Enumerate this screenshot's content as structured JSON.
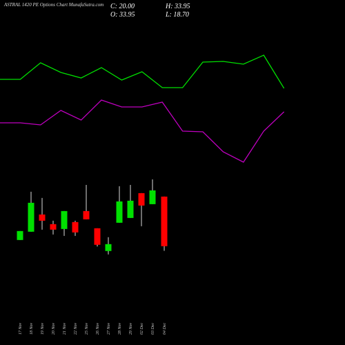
{
  "chart_data": [
    {
      "type": "line",
      "title": "ASTRAL 1420 PE Options Chart MunafaSutra.com",
      "x": [
        0,
        1,
        2,
        3,
        4,
        5,
        6,
        7,
        8,
        9,
        10,
        11,
        12,
        13,
        14
      ],
      "ylim": [
        0,
        100
      ],
      "series": [
        {
          "color": "#00e000",
          "values": [
            77,
            77,
            81.8,
            79,
            77.4,
            80.4,
            76.8,
            79.2,
            74.6,
            74.6,
            82,
            82.2,
            81.4,
            84,
            74.4
          ]
        },
        {
          "color": "#c000c0",
          "values": [
            64.4,
            64.4,
            63.8,
            68,
            65.2,
            71,
            69,
            69,
            70.4,
            62,
            61.8,
            56,
            53,
            62,
            67.6
          ]
        }
      ]
    },
    {
      "type": "candlestick",
      "ohlc_text": {
        "close": "C: 20.00",
        "high": "H: 33.95",
        "open": "O: 33.95",
        "low": "L: 18.70"
      },
      "categories": [
        "17 Nov",
        "18 Nov",
        "19 Nov",
        "20 Nov",
        "21 Nov",
        "22 Nov",
        "25 Nov",
        "26 Nov",
        "27 Nov",
        "28 Nov",
        "29 Nov",
        "02 Dec",
        "03 Dec",
        "04 Dec"
      ],
      "open": [
        21.74,
        24.07,
        28.91,
        26.2,
        24.84,
        26.78,
        29.88,
        25.04,
        18.64,
        26.59,
        27.94,
        34.92,
        31.82,
        33.95
      ],
      "high": [
        24.26,
        35.31,
        33.56,
        27.17,
        29.88,
        27.17,
        37.24,
        25.04,
        22.52,
        36.86,
        37.24,
        34.92,
        38.8,
        33.95
      ],
      "low": [
        21.74,
        24.07,
        24.65,
        23.29,
        22.9,
        22.9,
        27.55,
        19.9,
        17.67,
        26.59,
        27.94,
        25.62,
        31.82,
        18.7
      ],
      "close": [
        24.26,
        32.21,
        27.17,
        24.65,
        29.88,
        23.87,
        27.55,
        20.39,
        20.58,
        32.59,
        32.79,
        31.43,
        35.69,
        20.0
      ],
      "up_color": "#00e000",
      "down_color": "#ff0000",
      "ylim": [
        12,
        45
      ]
    }
  ]
}
